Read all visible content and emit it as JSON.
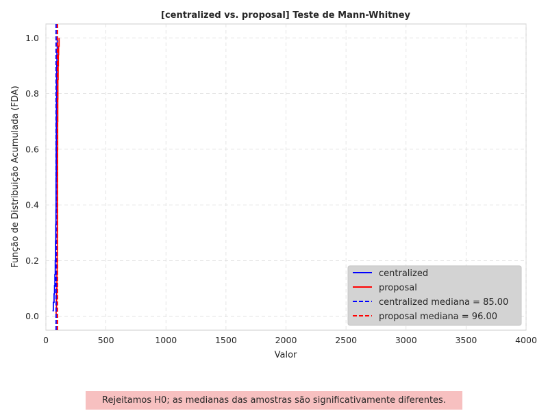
{
  "chart_data": {
    "type": "line",
    "title": "[centralized vs. proposal] Teste de Mann-Whitney",
    "xlabel": "Valor",
    "ylabel": "Função de Distribuição Acumulada (FDA)",
    "xlim": [
      0,
      4000
    ],
    "ylim": [
      -0.05,
      1.05
    ],
    "xticks": [
      0,
      500,
      1000,
      1500,
      2000,
      2500,
      3000,
      3500,
      4000
    ],
    "yticks": [
      0.0,
      0.2,
      0.4,
      0.6,
      0.8,
      1.0
    ],
    "xtick_labels": [
      "0",
      "500",
      "1000",
      "1500",
      "2000",
      "2500",
      "3000",
      "3500",
      "4000"
    ],
    "ytick_labels": [
      "0.0",
      "0.2",
      "0.4",
      "0.6",
      "0.8",
      "1.0"
    ],
    "grid": true,
    "legend_position": "lower-right",
    "series": [
      {
        "name": "centralized",
        "color": "#0000ff",
        "style": "solid",
        "x": [
          55,
          62,
          68,
          72,
          75,
          78,
          80,
          82,
          84,
          85,
          86,
          87,
          88,
          89,
          90,
          92,
          95
        ],
        "y": [
          0.02,
          0.05,
          0.08,
          0.11,
          0.15,
          0.2,
          0.27,
          0.33,
          0.38,
          0.5,
          0.62,
          0.7,
          0.78,
          0.85,
          0.9,
          0.95,
          1.0
        ]
      },
      {
        "name": "proposal",
        "color": "#ff0000",
        "style": "solid",
        "x": [
          82,
          85,
          88,
          90,
          92,
          94,
          95,
          96,
          97,
          98,
          99,
          100,
          102,
          104,
          106,
          110
        ],
        "y": [
          0.01,
          0.03,
          0.06,
          0.1,
          0.15,
          0.22,
          0.3,
          0.5,
          0.6,
          0.7,
          0.78,
          0.85,
          0.9,
          0.94,
          0.97,
          1.0
        ]
      },
      {
        "name": "centralized mediana = 85.00",
        "color": "#0000ff",
        "style": "dashed",
        "vline": 85.0
      },
      {
        "name": "proposal mediana = 96.00",
        "color": "#ff0000",
        "style": "dashed",
        "vline": 96.0
      }
    ]
  },
  "conclusion": "Rejeitamos H0; as medianas das amostras são significativamente diferentes."
}
